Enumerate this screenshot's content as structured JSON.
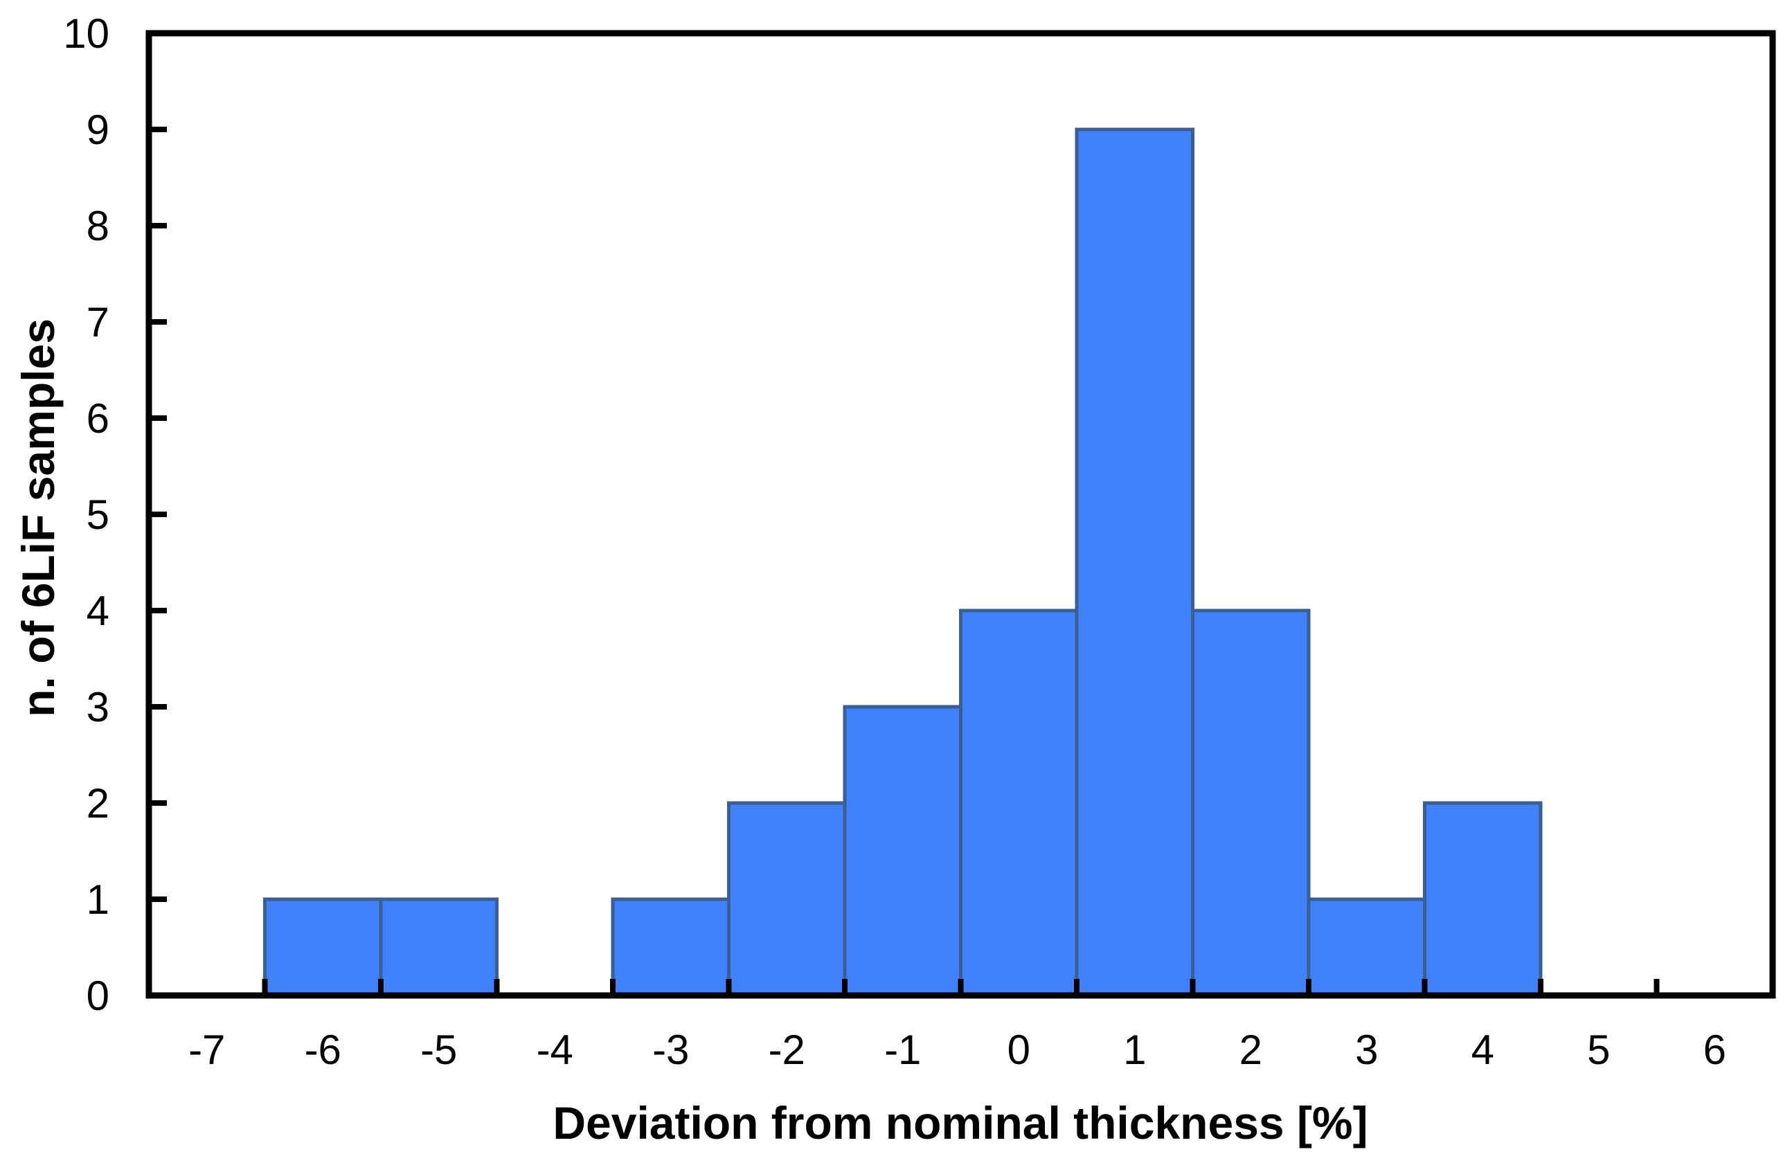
{
  "chart_data": {
    "type": "bar",
    "subtype": "histogram",
    "title": "",
    "xlabel": "Deviation from nominal thickness [%]",
    "ylabel": "n. of 6LiF samples",
    "categories": [
      -7,
      -6,
      -5,
      -4,
      -3,
      -2,
      -1,
      0,
      1,
      2,
      3,
      4,
      5,
      6
    ],
    "values": [
      0,
      1,
      1,
      0,
      1,
      2,
      3,
      4,
      9,
      4,
      1,
      2,
      0,
      0
    ],
    "ylim": [
      0,
      10
    ],
    "ytick_step": 1,
    "yticks": [
      0,
      1,
      2,
      3,
      4,
      5,
      6,
      7,
      8,
      9,
      10
    ],
    "grid": false,
    "legend": false,
    "bin_width_percent": 1,
    "colors": {
      "bar_fill": "#4182FA",
      "bar_stroke": "#3A5F94",
      "axis": "#000000",
      "background": "#FFFFFF",
      "text": "#000000"
    }
  }
}
